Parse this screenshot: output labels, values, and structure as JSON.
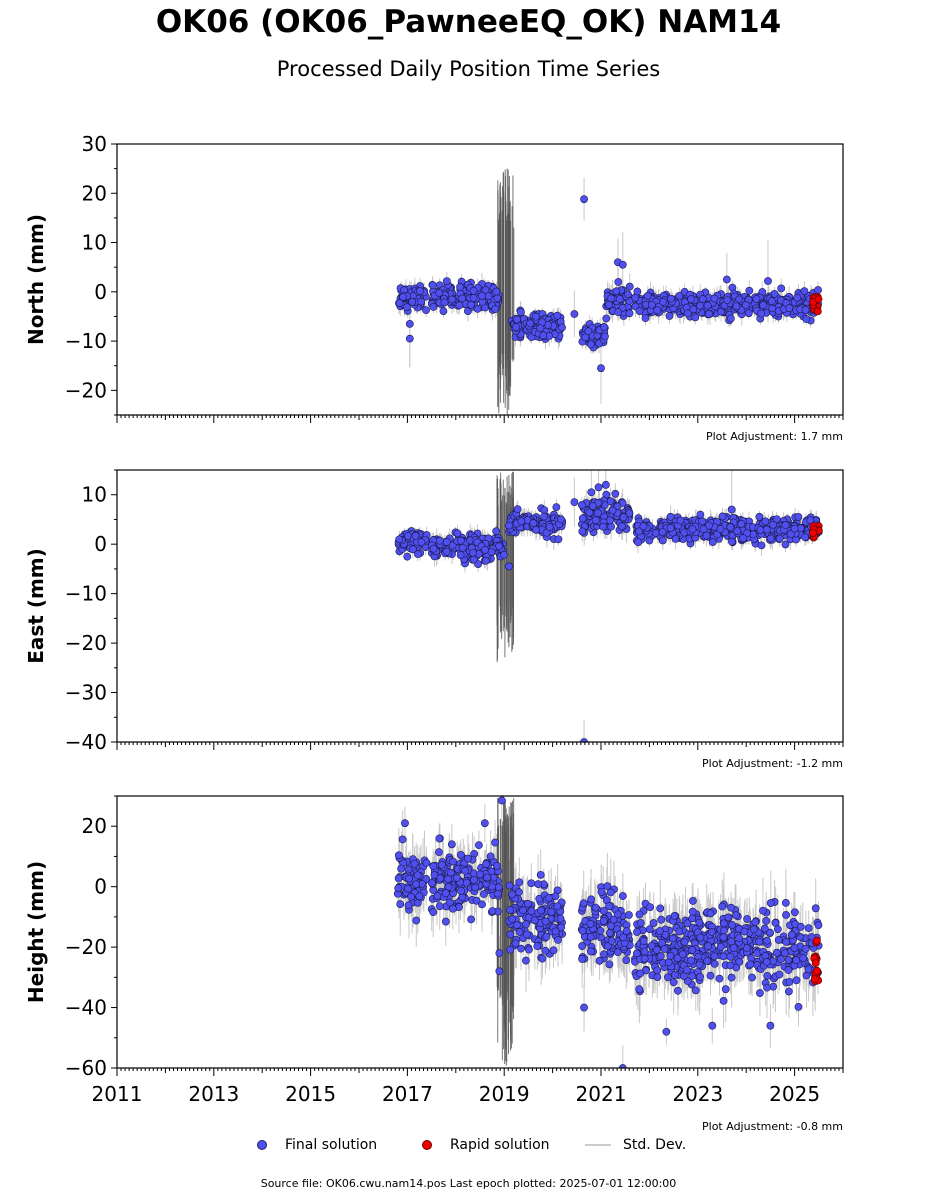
{
  "title": "OK06 (OK06_PawneeEQ_OK) NAM14",
  "subtitle": "Processed Daily Position Time Series",
  "legend": {
    "final_label": "Final solution",
    "rapid_label": "Rapid solution",
    "std_label": "Std. Dev."
  },
  "footer": "Source file: OK06.cwu.nam14.pos  Last epoch plotted: 2025-07-01 12:00:00",
  "colors": {
    "final": "#5050f0",
    "rapid": "#ee0000",
    "stddev": "#c8c8c8",
    "gap_band": "#555555"
  },
  "chart_data": [
    {
      "type": "scatter",
      "panel": "north",
      "ylabel": "North (mm)",
      "ylim": [
        -25,
        30
      ],
      "yticks": [
        -20,
        -10,
        0,
        10,
        20,
        30
      ],
      "xlim": [
        2011,
        2026
      ],
      "adjustment": "Plot Adjustment: 1.7 mm",
      "segments": [
        {
          "x": [
            2016.8,
            2017.4
          ],
          "y": -1,
          "spread": 1.5
        },
        {
          "x": [
            2017.5,
            2018.9
          ],
          "y": -1,
          "spread": 1.5
        },
        {
          "x": [
            2019.15,
            2020.2
          ],
          "y": -7,
          "spread": 1.5
        },
        {
          "x": [
            2020.6,
            2021.1
          ],
          "y": -9,
          "spread": 1.5
        },
        {
          "x": [
            2021.1,
            2021.6
          ],
          "y": -2,
          "spread": 2
        },
        {
          "x": [
            2021.7,
            2025.5
          ],
          "y": -2.5,
          "spread": 1.5
        }
      ],
      "outliers": [
        [
          2017.05,
          -6.5
        ],
        [
          2017.05,
          -9.5
        ],
        [
          2020.65,
          18.8
        ],
        [
          2021.0,
          -15.5
        ],
        [
          2021.35,
          6
        ],
        [
          2021.45,
          5.5
        ],
        [
          2023.6,
          2.5
        ],
        [
          2024.45,
          2.2
        ],
        [
          2020.45,
          -4.5
        ]
      ],
      "gap_band": [
        2018.85,
        2019.2
      ],
      "gap_range": [
        -25,
        26
      ],
      "rapid": {
        "x": [
          2025.38,
          2025.5
        ],
        "y": [
          -4,
          -1
        ]
      }
    },
    {
      "type": "scatter",
      "panel": "east",
      "ylabel": "East (mm)",
      "ylim": [
        -40,
        15
      ],
      "yticks": [
        -40,
        -30,
        -20,
        -10,
        0,
        10
      ],
      "xlim": [
        2011,
        2026
      ],
      "adjustment": "Plot Adjustment: -1.2 mm",
      "segments": [
        {
          "x": [
            2016.8,
            2017.4
          ],
          "y": 0.5,
          "spread": 1.2
        },
        {
          "x": [
            2017.5,
            2019.0
          ],
          "y": -0.5,
          "spread": 1.5
        },
        {
          "x": [
            2019.1,
            2020.2
          ],
          "y": 4,
          "spread": 1.5
        },
        {
          "x": [
            2020.6,
            2021.6
          ],
          "y": 6,
          "spread": 2
        },
        {
          "x": [
            2021.7,
            2025.5
          ],
          "y": 3,
          "spread": 1.5
        }
      ],
      "outliers": [
        [
          2020.45,
          8.5
        ],
        [
          2020.65,
          -40
        ],
        [
          2020.8,
          10.5
        ],
        [
          2020.95,
          11.5
        ],
        [
          2021.1,
          12
        ],
        [
          2019.1,
          -4.5
        ],
        [
          2023.7,
          7
        ]
      ],
      "gap_band": [
        2018.85,
        2019.2
      ],
      "gap_range": [
        -24,
        15
      ],
      "rapid": {
        "x": [
          2025.38,
          2025.5
        ],
        "y": [
          1,
          4
        ]
      }
    },
    {
      "type": "scatter",
      "panel": "height",
      "ylabel": "Height (mm)",
      "xlabel": "",
      "ylim": [
        -60,
        30
      ],
      "yticks": [
        -60,
        -40,
        -20,
        0,
        20
      ],
      "xlim": [
        2011,
        2026
      ],
      "xticks": [
        "2011",
        "2013",
        "2015",
        "2017",
        "2019",
        "2021",
        "2023",
        "2025"
      ],
      "adjustment": "Plot Adjustment: -0.8 mm",
      "segments": [
        {
          "x": [
            2016.8,
            2017.4
          ],
          "y": 2,
          "spread": 7
        },
        {
          "x": [
            2017.5,
            2018.9
          ],
          "y": 2,
          "spread": 6
        },
        {
          "x": [
            2019.1,
            2020.2
          ],
          "y": -10,
          "spread": 7
        },
        {
          "x": [
            2020.6,
            2021.6
          ],
          "y": -15,
          "spread": 8
        },
        {
          "x": [
            2021.7,
            2025.5
          ],
          "y": -20,
          "spread": 8
        }
      ],
      "outliers": [
        [
          2018.95,
          28.5
        ],
        [
          2018.9,
          -28
        ],
        [
          2018.9,
          -22
        ],
        [
          2021.45,
          -60
        ],
        [
          2020.65,
          -40
        ],
        [
          2022.35,
          -48
        ],
        [
          2023.3,
          -46
        ],
        [
          2024.5,
          -46
        ],
        [
          2016.95,
          21
        ],
        [
          2018.6,
          21
        ]
      ],
      "gap_band": [
        2018.85,
        2019.2
      ],
      "gap_range": [
        -60,
        30
      ],
      "rapid": {
        "x": [
          2025.38,
          2025.5
        ],
        "y": [
          -32,
          -16
        ]
      }
    }
  ]
}
